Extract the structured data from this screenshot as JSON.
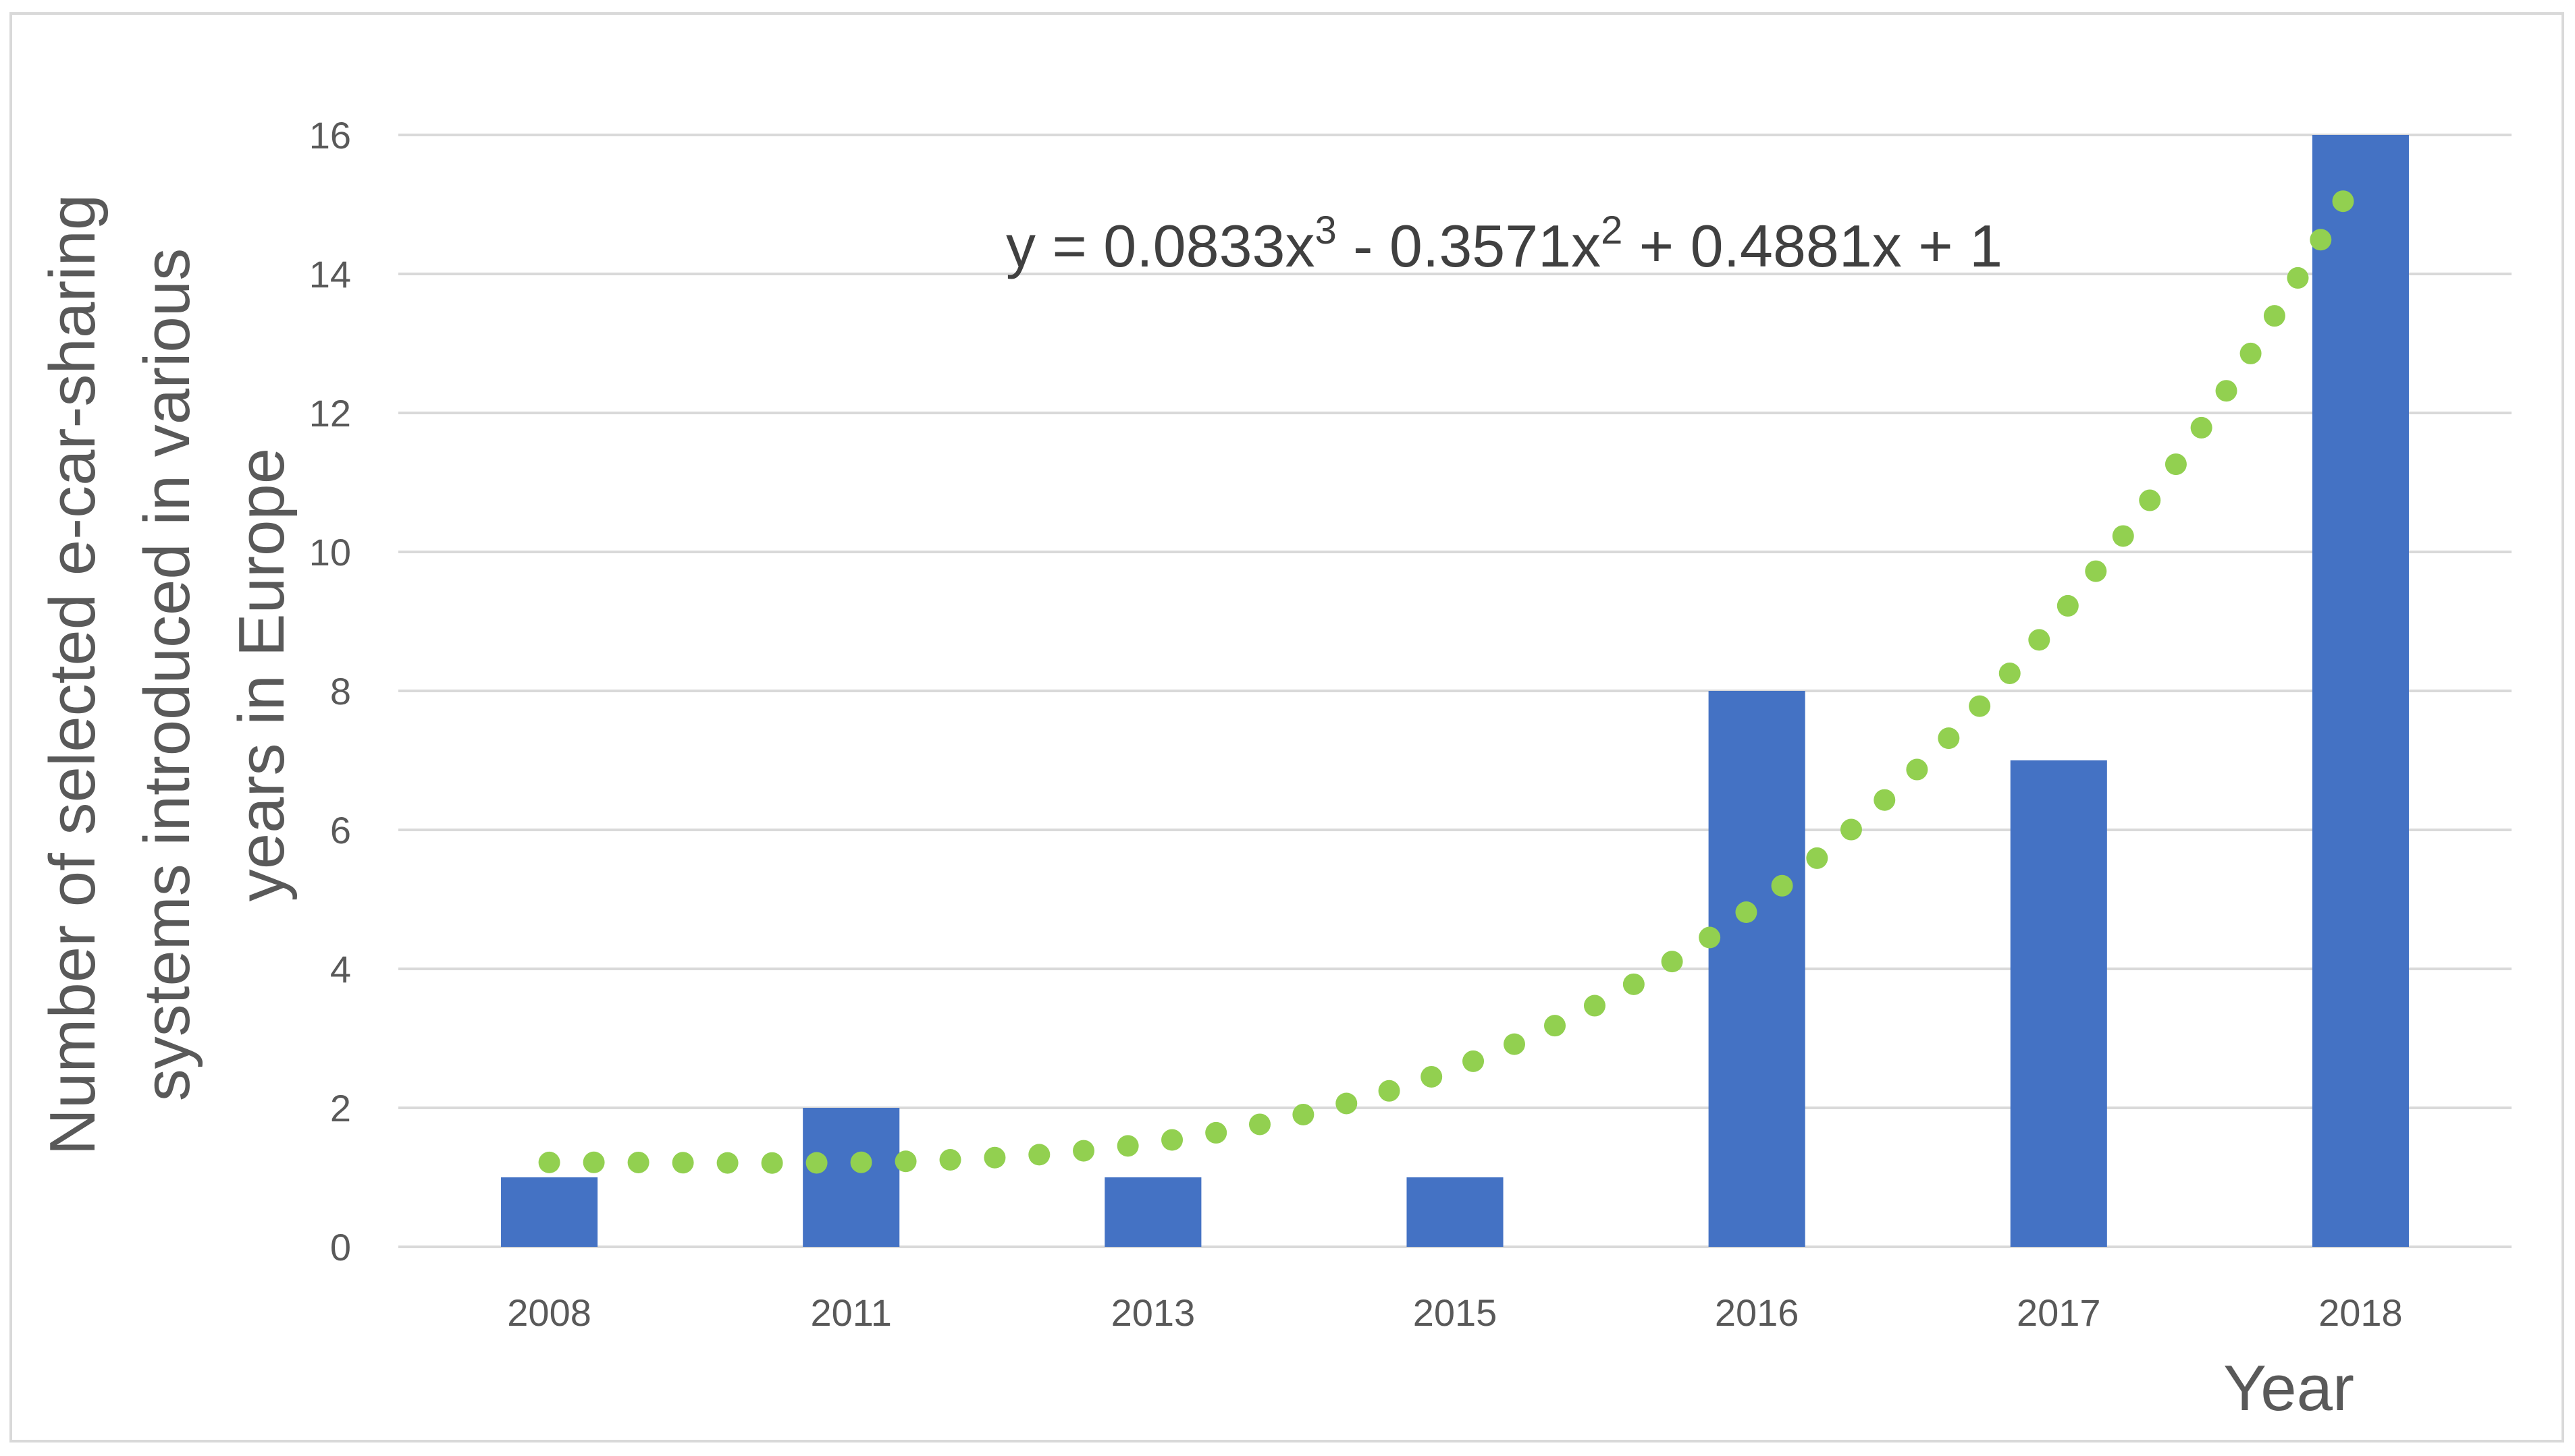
{
  "chart_data": {
    "type": "bar",
    "categories": [
      "2008",
      "2011",
      "2013",
      "2015",
      "2016",
      "2017",
      "2018"
    ],
    "values": [
      1,
      2,
      1,
      1,
      8,
      7,
      16
    ],
    "xlabel": "Year",
    "ylabel_lines": [
      "Number of selected e-car-sharing",
      "systems introduced in various",
      "years in Europe"
    ],
    "ylim": [
      0,
      16
    ],
    "yticks": [
      0,
      2,
      4,
      6,
      8,
      10,
      12,
      14,
      16
    ],
    "grid": true,
    "legend": "none",
    "bar_color": "#4472C4",
    "trendline": {
      "type": "polynomial",
      "order": 3,
      "coefficients": [
        0.0833,
        -0.3571,
        0.4881,
        1
      ],
      "color": "#92D050",
      "style": "dotted",
      "equation_parts": [
        "y = 0.0833x",
        "3",
        " - 0.3571x",
        "2",
        " + 0.4881x + 1"
      ]
    }
  }
}
